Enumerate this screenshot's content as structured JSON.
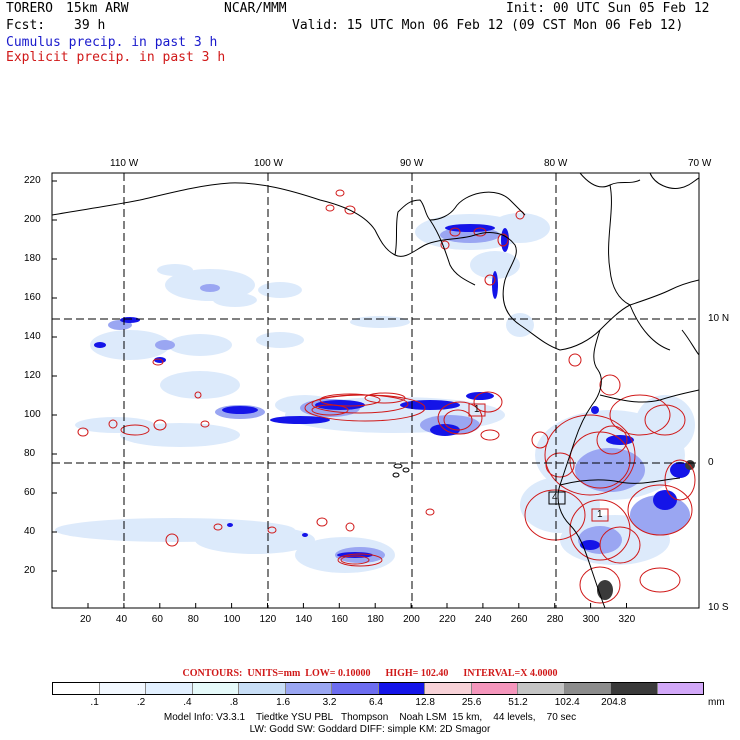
{
  "header": {
    "model": "TORERO",
    "resolution": "15km ARW",
    "org": "NCAR/MMM",
    "init": "Init: 00 UTC Sun 05 Feb 12",
    "fcst_label": "Fcst:",
    "fcst_value": "39 h",
    "valid": "Valid: 15 UTC Mon 06 Feb 12 (09 CST Mon 06 Feb 12)",
    "field1": "Cumulus precip. in past 3 h",
    "field2": "Explicit precip. in past 3 h"
  },
  "map": {
    "lon_labels": [
      "110 W",
      "100 W",
      "90 W",
      "80 W",
      "70 W"
    ],
    "lat_labels": [
      "10 N",
      "0",
      "10 S"
    ],
    "y_ticks": [
      "220",
      "200",
      "180",
      "160",
      "140",
      "120",
      "100",
      "80",
      "60",
      "40",
      "20"
    ],
    "x_ticks": [
      "20",
      "40",
      "60",
      "80",
      "100",
      "120",
      "140",
      "160",
      "180",
      "200",
      "220",
      "240",
      "260",
      "280",
      "300",
      "320"
    ],
    "box_labels": [
      "1",
      "4",
      "1"
    ]
  },
  "contours": {
    "label": "CONTOURS:",
    "units": "UNITS=mm",
    "low": "LOW= 0.10000",
    "high": "HIGH= 102.40",
    "interval": "INTERVAL=X 4.0000"
  },
  "legend": {
    "colors": [
      "#ffffff",
      "#f2f8ff",
      "#e2f0ff",
      "#e6fafa",
      "#c8def6",
      "#9aa6f2",
      "#6d6df0",
      "#1414e8",
      "#f8d2d8",
      "#f596bc",
      "#c4c4c4",
      "#8c8c8c",
      "#3a3a3a",
      "#d2a8f8"
    ],
    "labels": [
      ".1",
      ".2",
      ".4",
      ".8",
      "1.6",
      "3.2",
      "6.4",
      "12.8",
      "25.6",
      "51.2",
      "102.4",
      "204.8"
    ],
    "unit": "mm"
  },
  "model_info": {
    "line1": "Model Info: V3.3.1    Tiedtke YSU PBL   Thompson    Noah LSM  15 km,    44 levels,    70 sec",
    "line2": "LW: Godd SW: Goddard DIFF: simple KM: 2D Smagor"
  }
}
